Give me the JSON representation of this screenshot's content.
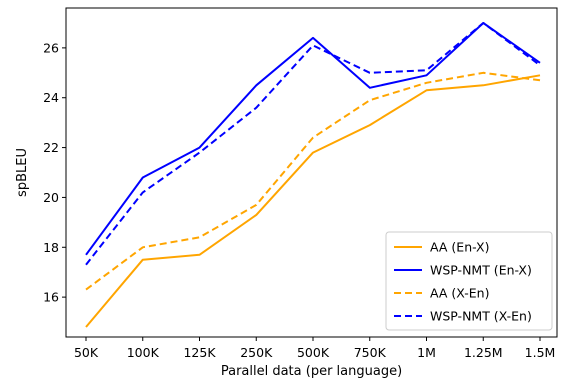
{
  "chart_data": {
    "type": "line",
    "categories": [
      "50K",
      "100K",
      "125K",
      "250K",
      "500K",
      "750K",
      "1M",
      "1.25M",
      "1.5M"
    ],
    "xlabel": "Parallel data (per language)",
    "ylabel": "spBLEU",
    "ylim": [
      14.4,
      27.6
    ],
    "yticks": [
      16,
      18,
      20,
      22,
      24,
      26
    ],
    "legend_position": "bottom-right",
    "grid": false,
    "series": [
      {
        "name": "AA (En-X)",
        "color": "#FFA500",
        "dash": "solid",
        "values": [
          14.8,
          17.5,
          17.7,
          19.3,
          21.8,
          22.9,
          24.3,
          24.5,
          24.9
        ]
      },
      {
        "name": "WSP-NMT (En-X)",
        "color": "#0000FF",
        "dash": "solid",
        "values": [
          17.7,
          20.8,
          22.0,
          24.5,
          26.4,
          24.4,
          24.9,
          27.0,
          25.4
        ]
      },
      {
        "name": "AA (X-En)",
        "color": "#FFA500",
        "dash": "dashed",
        "values": [
          16.3,
          18.0,
          18.4,
          19.7,
          22.4,
          23.9,
          24.6,
          25.0,
          24.7
        ]
      },
      {
        "name": "WSP-NMT (X-En)",
        "color": "#0000FF",
        "dash": "dashed",
        "values": [
          17.3,
          20.2,
          21.8,
          23.6,
          26.1,
          25.0,
          25.1,
          27.0,
          25.3
        ]
      }
    ]
  }
}
